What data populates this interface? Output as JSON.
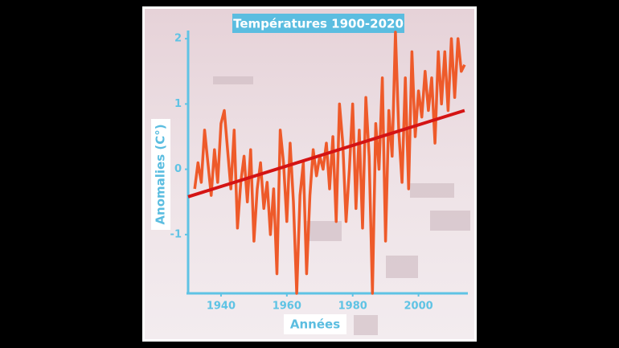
{
  "chart_data": {
    "type": "line",
    "title": "Températures 1900-2020",
    "x_label": "Années",
    "y_label": "Anomalies (C°)",
    "x": [
      1932,
      1933,
      1934,
      1935,
      1936,
      1937,
      1938,
      1939,
      1940,
      1941,
      1942,
      1943,
      1944,
      1945,
      1946,
      1947,
      1948,
      1949,
      1950,
      1951,
      1952,
      1953,
      1954,
      1955,
      1956,
      1957,
      1958,
      1959,
      1960,
      1961,
      1962,
      1963,
      1964,
      1965,
      1966,
      1967,
      1968,
      1969,
      1970,
      1971,
      1972,
      1973,
      1974,
      1975,
      1976,
      1977,
      1978,
      1979,
      1980,
      1981,
      1982,
      1983,
      1984,
      1985,
      1986,
      1987,
      1988,
      1989,
      1990,
      1991,
      1992,
      1993,
      1994,
      1995,
      1996,
      1997,
      1998,
      1999,
      2000,
      2001,
      2002,
      2003,
      2004,
      2005,
      2006,
      2007,
      2008,
      2009,
      2010,
      2011,
      2012,
      2013,
      2014
    ],
    "series": [
      {
        "color": "#ee5a2a",
        "values": [
          -0.3,
          0.1,
          -0.2,
          0.6,
          0.1,
          -0.4,
          0.3,
          -0.2,
          0.7,
          0.9,
          0.3,
          -0.3,
          0.6,
          -0.9,
          -0.2,
          0.2,
          -0.5,
          0.3,
          -1.1,
          -0.3,
          0.1,
          -0.6,
          -0.2,
          -1.0,
          -0.3,
          -1.6,
          0.6,
          0.1,
          -0.8,
          0.4,
          -0.5,
          -1.9,
          -0.4,
          0.1,
          -1.6,
          -0.4,
          0.3,
          -0.1,
          0.2,
          0.0,
          0.4,
          -0.3,
          0.5,
          -0.8,
          1.0,
          0.4,
          -0.8,
          0.0,
          1.0,
          -0.6,
          0.6,
          -0.9,
          1.1,
          0.2,
          -1.9,
          0.7,
          0.0,
          1.4,
          -1.1,
          0.9,
          0.2,
          2.1,
          0.6,
          -0.2,
          1.4,
          -0.3,
          1.8,
          0.5,
          1.2,
          0.8,
          1.5,
          0.9,
          1.4,
          0.4,
          1.8,
          1.0,
          1.8,
          0.9,
          2.0,
          1.1,
          2.0,
          1.5,
          1.6
        ]
      }
    ],
    "trend": {
      "color": "#d41414",
      "x": [
        1930,
        2014
      ],
      "values": [
        -0.42,
        0.9
      ]
    },
    "xlim": [
      1930,
      2015
    ],
    "ylim": [
      -1.9,
      2.1
    ],
    "xticks": [
      1940,
      1960,
      1980,
      2000
    ],
    "yticks": [
      -1,
      0,
      1,
      2
    ]
  }
}
